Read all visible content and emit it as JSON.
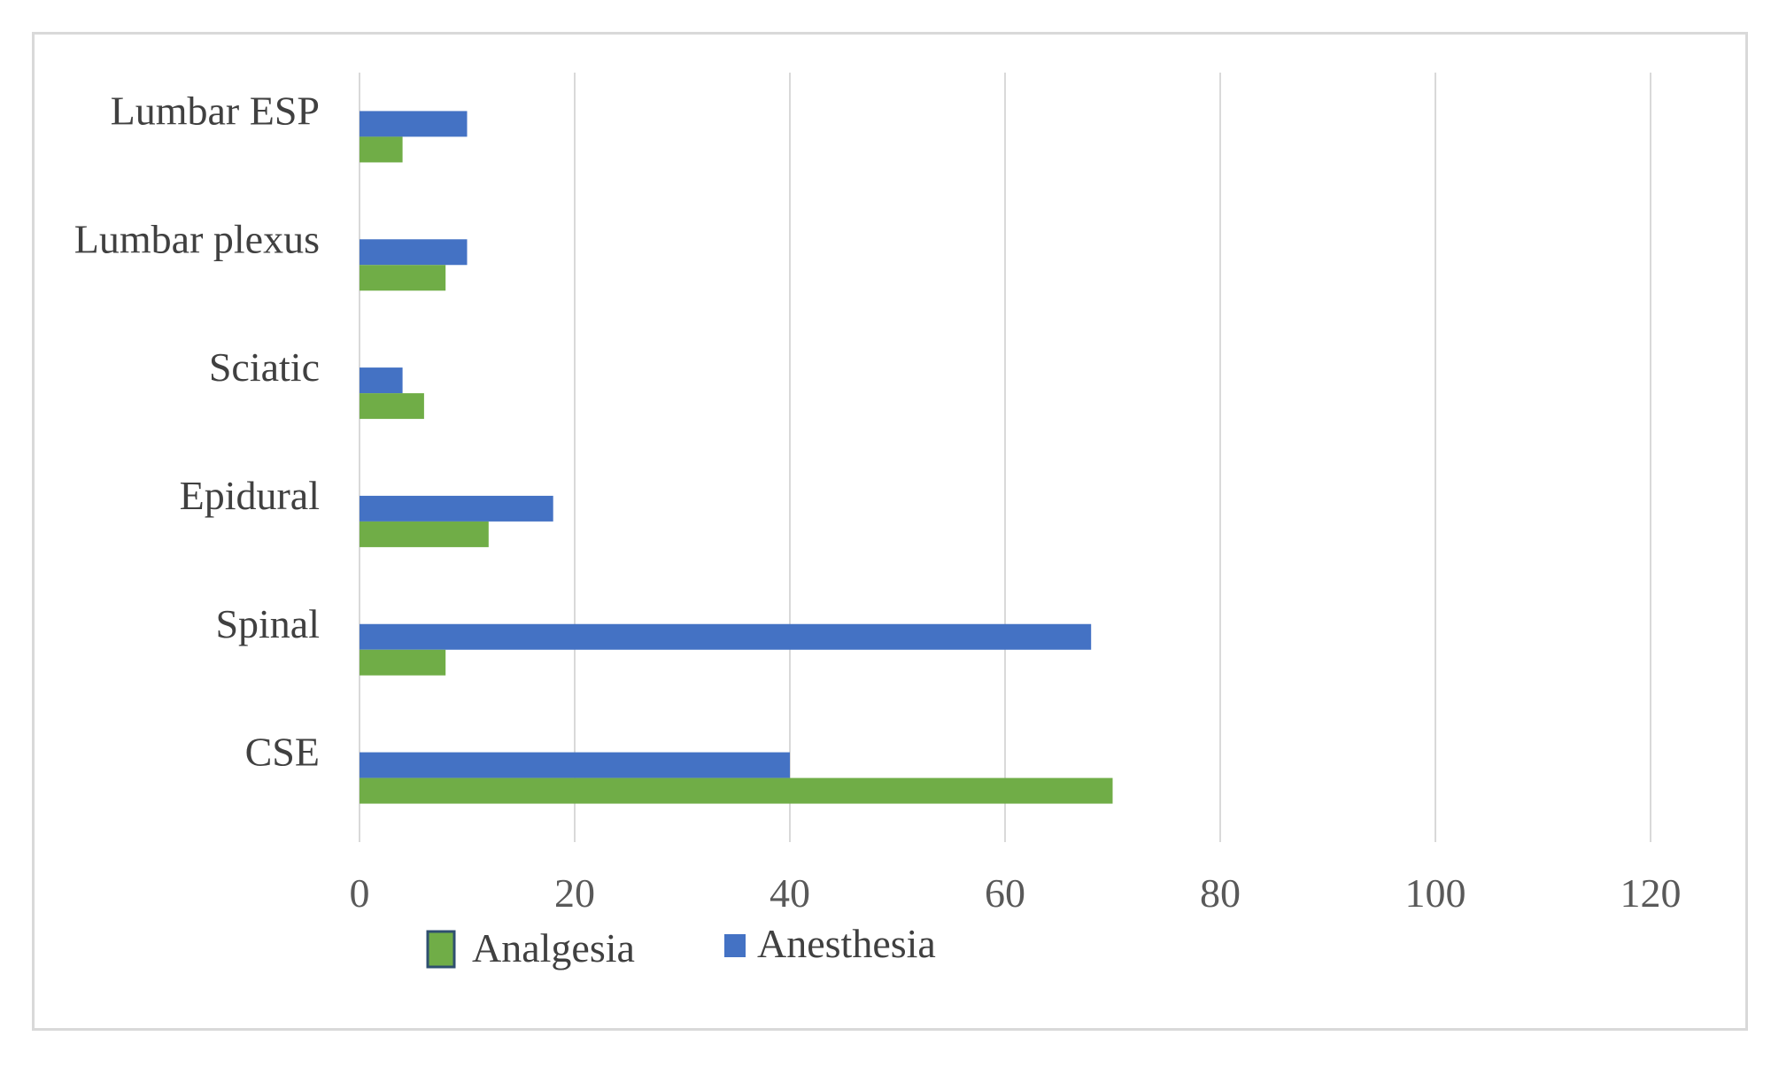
{
  "chart_data": {
    "type": "bar",
    "orientation": "horizontal",
    "categories": [
      "CSE",
      "Spinal",
      "Epidural",
      "Sciatic",
      "Lumbar plexus",
      "Lumbar ESP"
    ],
    "series": [
      {
        "name": "Anesthesia",
        "color": "#4472c4",
        "values": [
          40,
          68,
          18,
          4,
          10,
          10
        ]
      },
      {
        "name": "Analgesia",
        "color": "#70ad47",
        "values": [
          70,
          8,
          12,
          6,
          8,
          4
        ]
      }
    ],
    "xlim": [
      0,
      120
    ],
    "xticks": [
      0,
      20,
      40,
      60,
      80,
      100,
      120
    ],
    "xtick_labels": [
      "0",
      "20",
      "40",
      "60",
      "80",
      "100",
      "120"
    ],
    "grid": "vertical",
    "legend": "bottom",
    "legend_entries": [
      "Analgesia",
      "Anesthesia"
    ],
    "title": "",
    "xlabel": "",
    "ylabel": ""
  }
}
